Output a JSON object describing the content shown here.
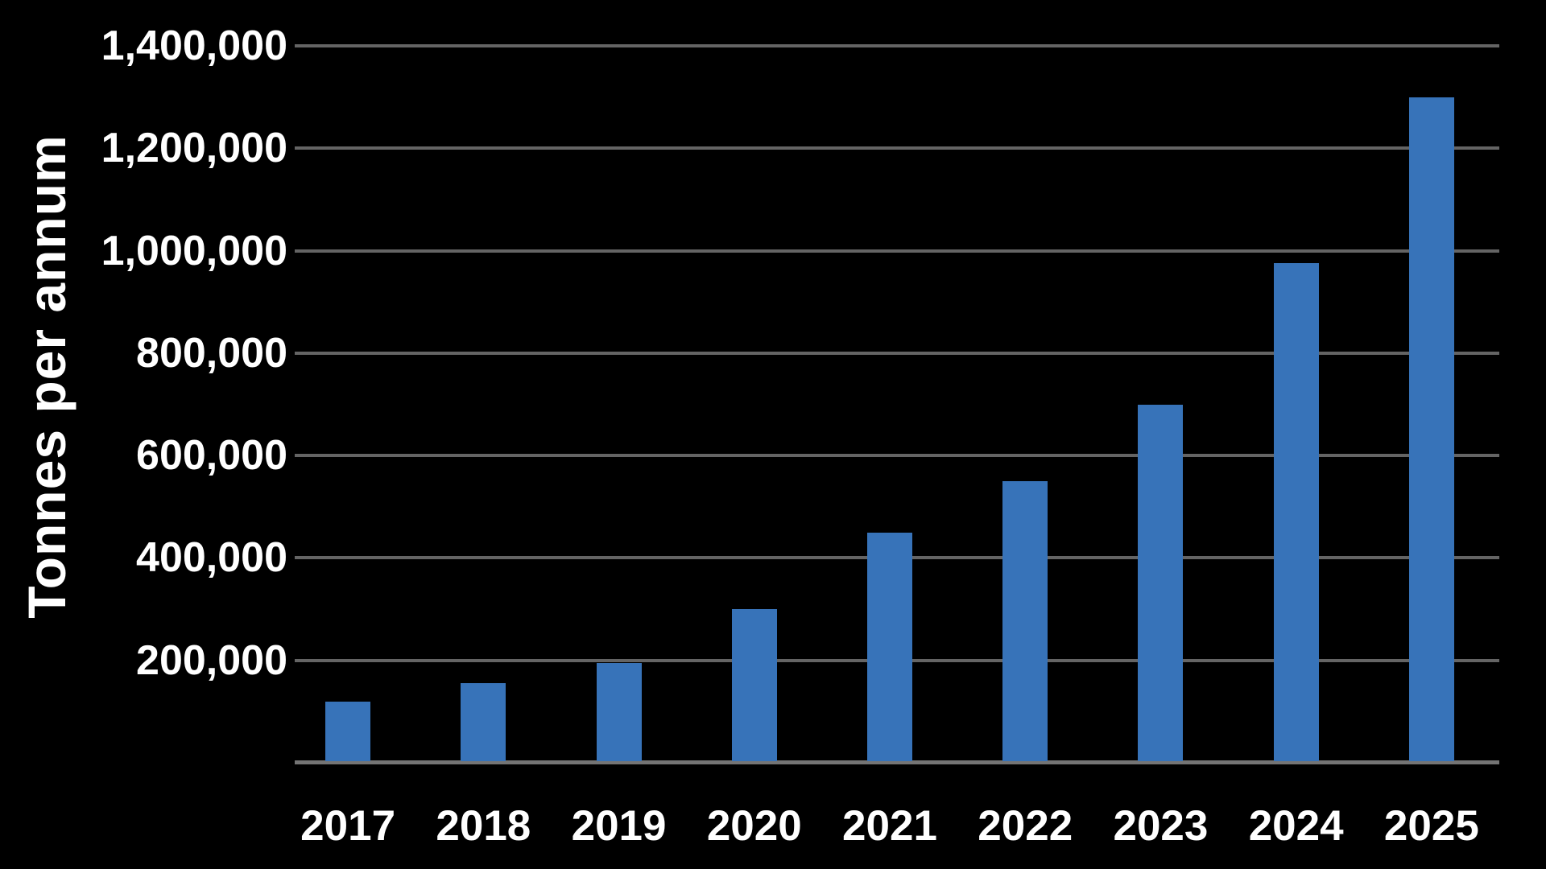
{
  "chart_data": {
    "type": "bar",
    "title": "",
    "xlabel": "",
    "ylabel": "Tonnes per annum",
    "categories": [
      "2017",
      "2018",
      "2019",
      "2020",
      "2021",
      "2022",
      "2023",
      "2024",
      "2025"
    ],
    "values": [
      120000,
      155000,
      195000,
      300000,
      450000,
      550000,
      700000,
      975000,
      1300000
    ],
    "ylim": [
      0,
      1400000
    ],
    "ytick_step": 200000,
    "ytick_labels": [
      "200,000",
      "400,000",
      "600,000",
      "800,000",
      "1,000,000",
      "1,200,000",
      "1,400,000"
    ],
    "grid": "horizontal",
    "legend": "none",
    "colors": {
      "background": "#000000",
      "bar": "#3773B9",
      "gridline": "#646464",
      "baseline": "#747474",
      "text": "#FFFFFF"
    }
  }
}
